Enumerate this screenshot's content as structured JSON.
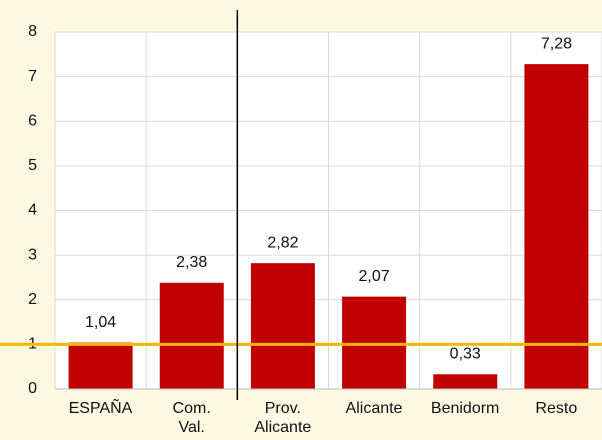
{
  "chart_data": {
    "type": "bar",
    "categories": [
      "ESPAÑA",
      "Com.\nVal.",
      "Prov.\nAlicante",
      "Alicante",
      "Benidorm",
      "Resto"
    ],
    "values": [
      1.04,
      2.38,
      2.82,
      2.07,
      0.33,
      7.28
    ],
    "value_labels": [
      "1,04",
      "2,38",
      "2,82",
      "2,07",
      "0,33",
      "7,28"
    ],
    "color": "#c00000",
    "ylim": [
      0,
      8
    ],
    "yticks": [
      0,
      1,
      2,
      3,
      4,
      5,
      6,
      7,
      8
    ],
    "grid": true,
    "reference_line": {
      "value": 1,
      "color": "#f5b800"
    },
    "separator_after_category": 1
  }
}
